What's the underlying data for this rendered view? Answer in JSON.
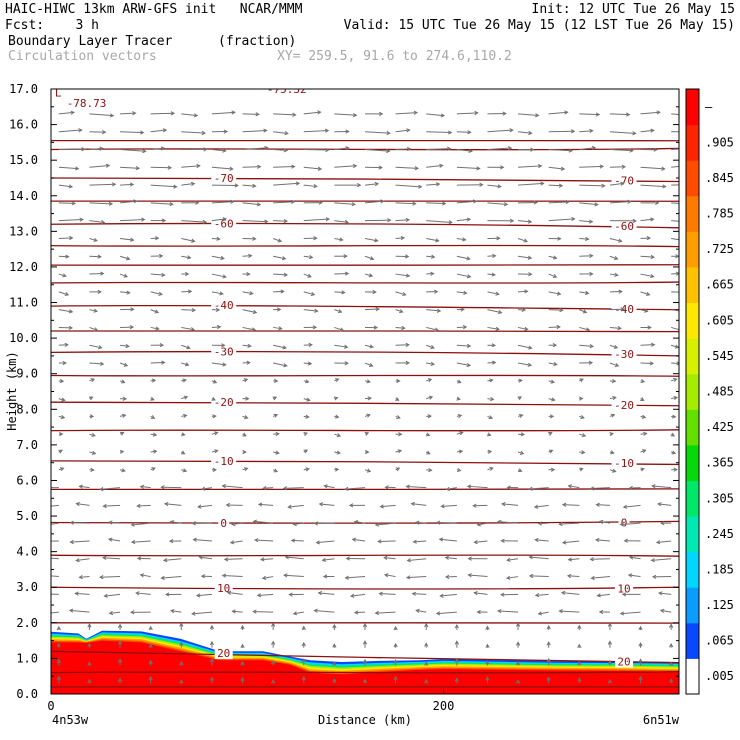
{
  "header": {
    "line1_left": "HAIC-HIWC 13km ARW-GFS init   NCAR/MMM",
    "line1_right": "Init: 12 UTC Tue 26 May 15",
    "line2_left": "Fcst:    3 h",
    "line2_right": "Valid: 15 UTC Tue 26 May 15 (12 LST Tue 26 May 15)",
    "line3_left": "Boundary Layer Tracer",
    "line3_unit": "(fraction)",
    "line4_left": "Circulation vectors",
    "line4_xy": "XY= 259.5, 91.6 to 274.6,110.2"
  },
  "chart_data": {
    "type": "heatmap",
    "xlabel": "Distance (km)",
    "ylabel": "Height (km)",
    "x_ticks": [
      {
        "value": 0,
        "label": "0"
      },
      {
        "value": 200,
        "label": "200"
      }
    ],
    "x_end_labels": {
      "left": "4n53w",
      "right": "6n51w"
    },
    "xlim": [
      0,
      320
    ],
    "ylim": [
      0,
      17
    ],
    "y_ticks": [
      "0.0",
      "1.0",
      "2.0",
      "3.0",
      "4.0",
      "5.0",
      "6.0",
      "7.0",
      "8.0",
      "9.0",
      "10.0",
      "11.0",
      "12.0",
      "13.0",
      "14.0",
      "15.0",
      "16.0",
      "17.0"
    ],
    "colorbar": {
      "labels": [
        ".005",
        ".065",
        ".125",
        ".185",
        ".245",
        ".305",
        ".365",
        ".425",
        ".485",
        ".545",
        ".605",
        ".665",
        ".725",
        ".785",
        ".845",
        ".905",
        "–"
      ],
      "colors": [
        "#ffffff",
        "#0a48ff",
        "#0a9cff",
        "#00d6ff",
        "#00e8b4",
        "#00e86a",
        "#06d80a",
        "#63e000",
        "#a6ec00",
        "#d6f000",
        "#ffe800",
        "#ffc200",
        "#ff9e00",
        "#ff7a00",
        "#ff4c00",
        "#ff2400",
        "#ff0000"
      ]
    },
    "tracer_top": {
      "x_km": [
        0,
        14,
        18,
        26,
        46,
        66,
        86,
        108,
        122,
        132,
        148,
        168,
        188,
        200,
        230,
        260,
        290,
        320
      ],
      "dark_blue_top": [
        1.75,
        1.7,
        1.55,
        1.78,
        1.76,
        1.55,
        1.2,
        1.2,
        1.05,
        0.95,
        0.9,
        0.93,
        0.95,
        0.98,
        0.95,
        0.92,
        0.92,
        0.9
      ],
      "red_top": [
        1.45,
        1.45,
        1.44,
        1.5,
        1.45,
        1.2,
        0.95,
        0.95,
        0.82,
        0.6,
        0.55,
        0.62,
        0.68,
        0.7,
        0.68,
        0.66,
        0.65,
        0.62
      ]
    },
    "temperature_contours": [
      {
        "label": "20",
        "heights": [
          1.2,
          1.1,
          0.95,
          0.88
        ]
      },
      {
        "label": "10",
        "heights": [
          3.0,
          2.95,
          2.92,
          3.0
        ]
      },
      {
        "label": "0",
        "heights": [
          4.82,
          4.8,
          4.78,
          4.85
        ]
      },
      {
        "label": "-10",
        "heights": [
          6.55,
          6.55,
          6.52,
          6.45
        ]
      },
      {
        "label": "-20",
        "heights": [
          8.2,
          8.2,
          8.15,
          8.1
        ]
      },
      {
        "label": "-30",
        "heights": [
          9.6,
          9.65,
          9.6,
          9.5
        ]
      },
      {
        "label": "-40",
        "heights": [
          10.9,
          10.95,
          10.85,
          10.8
        ]
      },
      {
        "label": "-60",
        "heights": [
          13.2,
          13.25,
          13.2,
          13.1
        ]
      },
      {
        "label": "-70",
        "heights": [
          14.5,
          14.5,
          14.45,
          14.4
        ]
      }
    ],
    "unlabeled_contour_heights": [
      0.2,
      0.6,
      2.0,
      3.9,
      5.75,
      7.4,
      8.95,
      10.2,
      11.55,
      12.05,
      12.6,
      13.85,
      15.3,
      15.55
    ],
    "annotations": [
      {
        "text": "L",
        "x_km": 2,
        "y_km": 16.9
      },
      {
        "text": "-78.73",
        "x_km": 8,
        "y_km": 16.6
      },
      {
        "text": "-75.32",
        "x_km": 110,
        "y_km": 17.0
      }
    ],
    "vector_wind_by_height": [
      {
        "z_min": 0,
        "z_max": 2,
        "u": 0,
        "w": 0.4
      },
      {
        "z_min": 2,
        "z_max": 6,
        "u": -1.0,
        "w": 0
      },
      {
        "z_min": 6,
        "z_max": 9,
        "u": 0.3,
        "w": 0
      },
      {
        "z_min": 9,
        "z_max": 13,
        "u": 0.7,
        "w": -0.1
      },
      {
        "z_min": 13,
        "z_max": 17,
        "u": 1.3,
        "w": 0
      }
    ],
    "colors": {
      "contour": "#8b1010",
      "vector": "#707070"
    }
  }
}
